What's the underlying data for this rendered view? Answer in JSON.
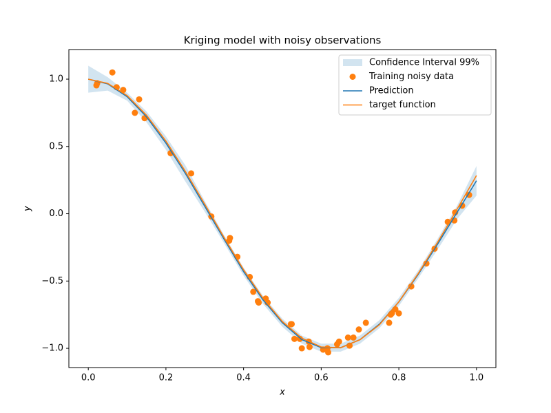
{
  "chart_data": {
    "type": "line",
    "title": "Kriging model with noisy observations",
    "x_label": "x",
    "y_label": "y",
    "xlim": [
      -0.05,
      1.05
    ],
    "ylim": [
      -1.143,
      1.22
    ],
    "xticks": [
      {
        "value": 0,
        "label": "0.0"
      },
      {
        "value": 0.2,
        "label": "0.2"
      },
      {
        "value": 0.4,
        "label": "0.4"
      },
      {
        "value": 0.6,
        "label": "0.6"
      },
      {
        "value": 0.8,
        "label": "0.8"
      },
      {
        "value": 1,
        "label": "1.0"
      }
    ],
    "yticks": [
      {
        "value": -1,
        "label": "−1.0"
      },
      {
        "value": -0.5,
        "label": "−0.5"
      },
      {
        "value": 0,
        "label": "0.0"
      },
      {
        "value": 0.5,
        "label": "0.5"
      },
      {
        "value": 1,
        "label": "1.0"
      }
    ],
    "legend": "upper right",
    "x": [
      0,
      0.05,
      0.1,
      0.15,
      0.2,
      0.25,
      0.3,
      0.35,
      0.4,
      0.45,
      0.5,
      0.55,
      0.6,
      0.65,
      0.7,
      0.75,
      0.8,
      0.85,
      0.9,
      0.95,
      1.0
    ],
    "series": [
      {
        "name": "Confidence Interval 99%",
        "type": "band",
        "color": "#1f77b4",
        "lower": [
          0.9,
          0.915,
          0.84,
          0.68,
          0.475,
          0.24,
          0.015,
          -0.22,
          -0.46,
          -0.67,
          -0.84,
          -0.965,
          -1.025,
          -1.025,
          -0.965,
          -0.85,
          -0.685,
          -0.48,
          -0.265,
          -0.04,
          0.135
        ],
        "upper": [
          1.1,
          1.015,
          0.9,
          0.76,
          0.575,
          0.36,
          0.095,
          -0.16,
          -0.4,
          -0.61,
          -0.78,
          -0.905,
          -0.965,
          -0.965,
          -0.905,
          -0.79,
          -0.625,
          -0.42,
          -0.185,
          0.06,
          0.355
        ]
      },
      {
        "name": "Training noisy data",
        "type": "scatter",
        "color": "#ff7f0e",
        "x": [
          0.021,
          0.023,
          0.062,
          0.073,
          0.09,
          0.12,
          0.131,
          0.145,
          0.212,
          0.265,
          0.317,
          0.363,
          0.365,
          0.384,
          0.416,
          0.425,
          0.437,
          0.439,
          0.457,
          0.462,
          0.522,
          0.524,
          0.531,
          0.545,
          0.55,
          0.568,
          0.57,
          0.605,
          0.616,
          0.618,
          0.641,
          0.646,
          0.669,
          0.673,
          0.683,
          0.697,
          0.715,
          0.775,
          0.779,
          0.782,
          0.791,
          0.8,
          0.832,
          0.871,
          0.892,
          0.926,
          0.943,
          0.945,
          0.963,
          0.981
        ],
        "values": [
          0.954,
          0.97,
          1.05,
          0.94,
          0.92,
          0.75,
          0.85,
          0.71,
          0.45,
          0.3,
          -0.02,
          -0.2,
          -0.18,
          -0.32,
          -0.47,
          -0.58,
          -0.65,
          -0.66,
          -0.63,
          -0.66,
          -0.82,
          -0.82,
          -0.93,
          -0.93,
          -1.0,
          -0.95,
          -0.99,
          -1.01,
          -1.0,
          -1.03,
          -0.97,
          -0.95,
          -0.92,
          -0.98,
          -0.92,
          -0.86,
          -0.81,
          -0.81,
          -0.75,
          -0.74,
          -0.71,
          -0.74,
          -0.54,
          -0.37,
          -0.26,
          -0.06,
          -0.05,
          0.01,
          0.06,
          0.14
        ]
      },
      {
        "name": "Prediction",
        "type": "line",
        "color": "#1f77b4",
        "values": [
          1.0,
          0.965,
          0.87,
          0.72,
          0.525,
          0.3,
          0.055,
          -0.19,
          -0.43,
          -0.64,
          -0.81,
          -0.935,
          -0.995,
          -0.995,
          -0.935,
          -0.82,
          -0.655,
          -0.45,
          -0.225,
          0.01,
          0.245
        ]
      },
      {
        "name": "target function",
        "type": "line",
        "color": "#ff7f0e",
        "values": [
          1.0,
          0.969,
          0.878,
          0.732,
          0.54,
          0.315,
          0.071,
          -0.178,
          -0.416,
          -0.628,
          -0.801,
          -0.924,
          -0.99,
          -0.996,
          -0.936,
          -0.825,
          -0.654,
          -0.444,
          -0.211,
          0.034,
          0.284
        ]
      }
    ]
  }
}
